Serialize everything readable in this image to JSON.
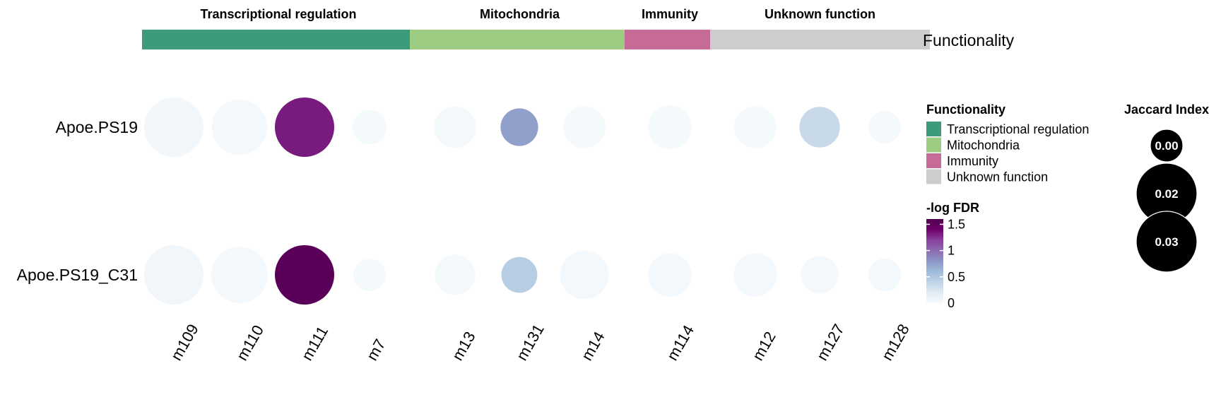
{
  "chart_data": {
    "type": "bubble-heatmap",
    "annotation_label": "Functionality",
    "groups": [
      {
        "name": "Transcriptional regulation",
        "color": "#3d9a7a",
        "columns": [
          "m109",
          "m110",
          "m111",
          "m7"
        ]
      },
      {
        "name": "Mitochondria",
        "color": "#9ccd82",
        "columns": [
          "m13",
          "m131",
          "m14"
        ]
      },
      {
        "name": "Immunity",
        "color": "#c66a97",
        "columns": [
          "m114"
        ]
      },
      {
        "name": "Unknown function",
        "color": "#cccdce",
        "columns": [
          "m12",
          "m127",
          "m128"
        ]
      }
    ],
    "rows": [
      "Apoe.PS19",
      "Apoe.PS19_C31"
    ],
    "columns": [
      "m109",
      "m110",
      "m111",
      "m7",
      "m13",
      "m131",
      "m14",
      "m114",
      "m12",
      "m127",
      "m128"
    ],
    "color_values": [
      [
        0.04,
        0.03,
        1.32,
        0.02,
        0.02,
        0.75,
        0.02,
        0.02,
        0.02,
        0.35,
        0.02
      ],
      [
        0.05,
        0.03,
        1.52,
        0.02,
        0.02,
        0.45,
        0.03,
        0.03,
        0.03,
        0.03,
        0.03
      ]
    ],
    "size_values": [
      [
        0.03,
        0.026,
        0.03,
        0.01,
        0.015,
        0.012,
        0.015,
        0.016,
        0.015,
        0.014,
        0.009
      ],
      [
        0.03,
        0.027,
        0.03,
        0.009,
        0.014,
        0.011,
        0.02,
        0.016,
        0.016,
        0.012,
        0.009
      ]
    ],
    "color_legend": {
      "title": "-log FDR",
      "ticks": [
        "1.5",
        "1",
        "0.5",
        "0"
      ],
      "tick_values": [
        1.5,
        1,
        0.5,
        0
      ],
      "range": [
        0,
        1.6
      ],
      "palette": [
        "#f6fafd",
        "#e1ebf4",
        "#bfd3e6",
        "#9ebcda",
        "#8c96c6",
        "#8c6bb1",
        "#88419d",
        "#6e016b",
        "#4d004b"
      ]
    },
    "functionality_legend": {
      "title": "Functionality",
      "items": [
        "Transcriptional regulation",
        "Mitochondria",
        "Immunity",
        "Unknown function"
      ]
    },
    "size_legend": {
      "title": "Jaccard Index",
      "labels": [
        "0.00",
        "0.02",
        "0.03"
      ],
      "values": [
        0.0,
        0.02,
        0.03
      ]
    }
  }
}
